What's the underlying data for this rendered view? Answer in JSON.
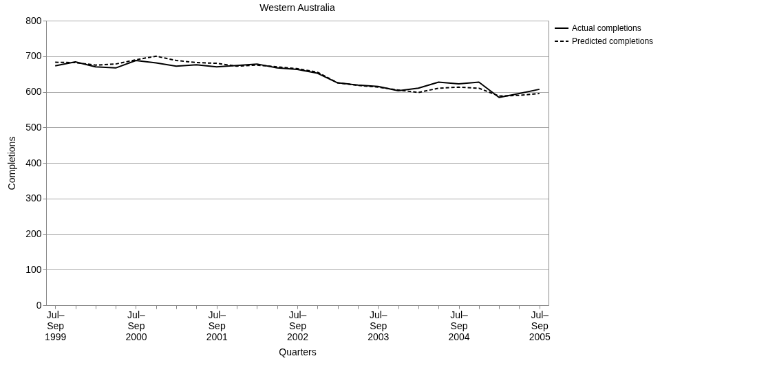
{
  "chart_data": {
    "type": "line",
    "title": "Western Australia",
    "xlabel": "Quarters",
    "ylabel": "Completions",
    "categories": [
      "Jul–\nSep\n1999",
      null,
      null,
      null,
      "Jul–\nSep\n2000",
      null,
      null,
      null,
      "Jul–\nSep\n2001",
      null,
      null,
      null,
      "Jul–\nSep\n2002",
      null,
      null,
      null,
      "Jul–\nSep\n2003",
      null,
      null,
      null,
      "Jul–\nSep\n2004",
      null,
      null,
      null,
      "Jul–\nSep\n2005"
    ],
    "series": [
      {
        "name": "Actual completions",
        "color": "#000000",
        "line_style": "solid",
        "values": [
          673,
          684,
          670,
          667,
          688,
          681,
          672,
          676,
          670,
          674,
          678,
          667,
          663,
          652,
          625,
          619,
          615,
          603,
          610,
          627,
          622,
          627,
          584,
          595,
          607
        ]
      },
      {
        "name": "Predicted completions",
        "color": "#000000",
        "line_style": "dashed",
        "values": [
          683,
          682,
          675,
          678,
          690,
          700,
          688,
          682,
          680,
          672,
          675,
          670,
          665,
          655,
          625,
          618,
          613,
          605,
          598,
          610,
          613,
          610,
          588,
          590,
          595
        ]
      }
    ],
    "ylim": [
      0,
      800
    ],
    "yticks": [
      0,
      100,
      200,
      300,
      400,
      500,
      600,
      700,
      800
    ],
    "grid": "y",
    "legend": "top right",
    "marker": "none"
  }
}
